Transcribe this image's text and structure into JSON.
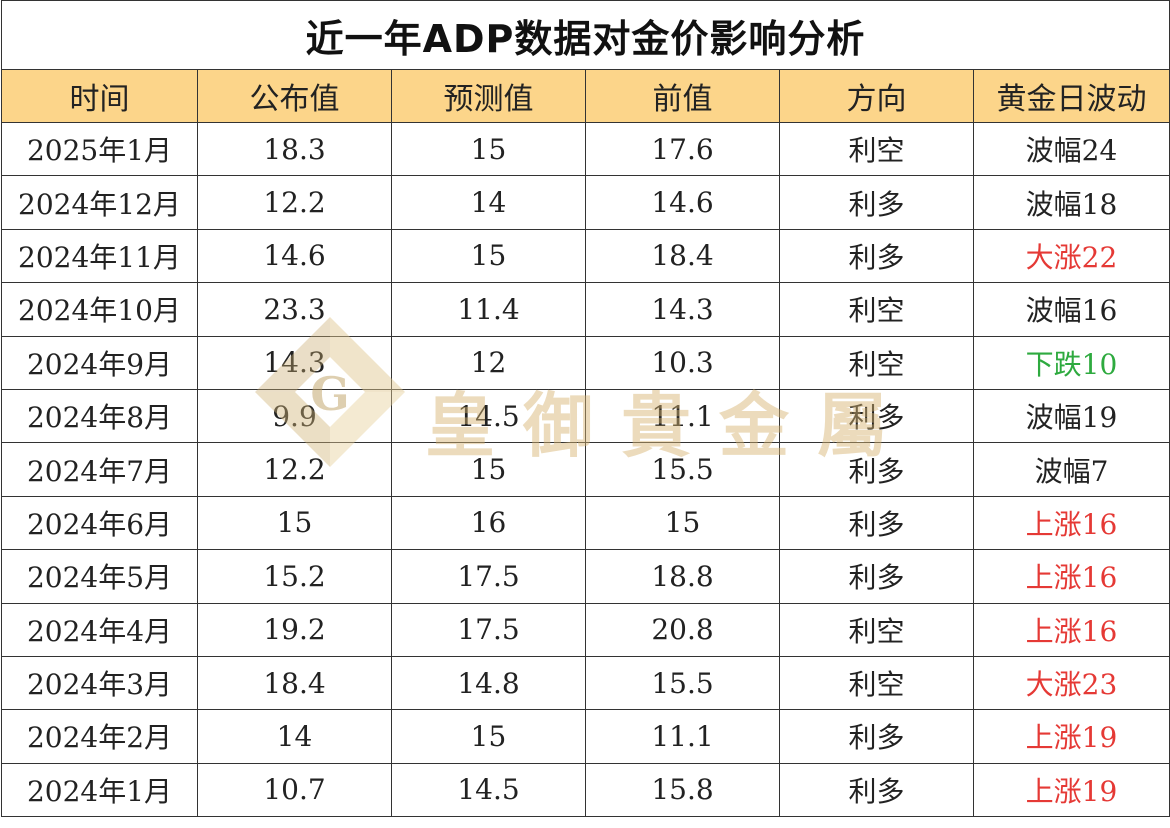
{
  "title": "近一年ADP数据对金价影响分析",
  "columns": [
    "时间",
    "公布值",
    "预测值",
    "前值",
    "方向",
    "黄金日波动"
  ],
  "rows": [
    {
      "time": "2025年1月",
      "actual": "18.3",
      "forecast": "15",
      "previous": "17.6",
      "direction": "利空",
      "gold_move": "波幅24",
      "move_color": "normal"
    },
    {
      "time": "2024年12月",
      "actual": "12.2",
      "forecast": "14",
      "previous": "14.6",
      "direction": "利多",
      "gold_move": "波幅18",
      "move_color": "normal"
    },
    {
      "time": "2024年11月",
      "actual": "14.6",
      "forecast": "15",
      "previous": "18.4",
      "direction": "利多",
      "gold_move": "大涨22",
      "move_color": "up"
    },
    {
      "time": "2024年10月",
      "actual": "23.3",
      "forecast": "11.4",
      "previous": "14.3",
      "direction": "利空",
      "gold_move": "波幅16",
      "move_color": "normal"
    },
    {
      "time": "2024年9月",
      "actual": "14.3",
      "forecast": "12",
      "previous": "10.3",
      "direction": "利空",
      "gold_move": "下跌10",
      "move_color": "down"
    },
    {
      "time": "2024年8月",
      "actual": "9.9",
      "forecast": "14.5",
      "previous": "11.1",
      "direction": "利多",
      "gold_move": "波幅19",
      "move_color": "normal"
    },
    {
      "time": "2024年7月",
      "actual": "12.2",
      "forecast": "15",
      "previous": "15.5",
      "direction": "利多",
      "gold_move": "波幅7",
      "move_color": "normal"
    },
    {
      "time": "2024年6月",
      "actual": "15",
      "forecast": "16",
      "previous": "15",
      "direction": "利多",
      "gold_move": "上涨16",
      "move_color": "up"
    },
    {
      "time": "2024年5月",
      "actual": "15.2",
      "forecast": "17.5",
      "previous": "18.8",
      "direction": "利多",
      "gold_move": "上涨16",
      "move_color": "up"
    },
    {
      "time": "2024年4月",
      "actual": "19.2",
      "forecast": "17.5",
      "previous": "20.8",
      "direction": "利空",
      "gold_move": "上涨16",
      "move_color": "up"
    },
    {
      "time": "2024年3月",
      "actual": "18.4",
      "forecast": "14.8",
      "previous": "15.5",
      "direction": "利空",
      "gold_move": "大涨23",
      "move_color": "up"
    },
    {
      "time": "2024年2月",
      "actual": "14",
      "forecast": "15",
      "previous": "11.1",
      "direction": "利多",
      "gold_move": "上涨19",
      "move_color": "up"
    },
    {
      "time": "2024年1月",
      "actual": "10.7",
      "forecast": "14.5",
      "previous": "15.8",
      "direction": "利多",
      "gold_move": "上涨19",
      "move_color": "up"
    }
  ],
  "watermark": {
    "text": "皇御貴金屬",
    "logo_letter": "G"
  },
  "colors": {
    "header_bg": "#fcd58a",
    "up": "#e53935",
    "down": "#2eaa3f",
    "normal": "#222222"
  }
}
